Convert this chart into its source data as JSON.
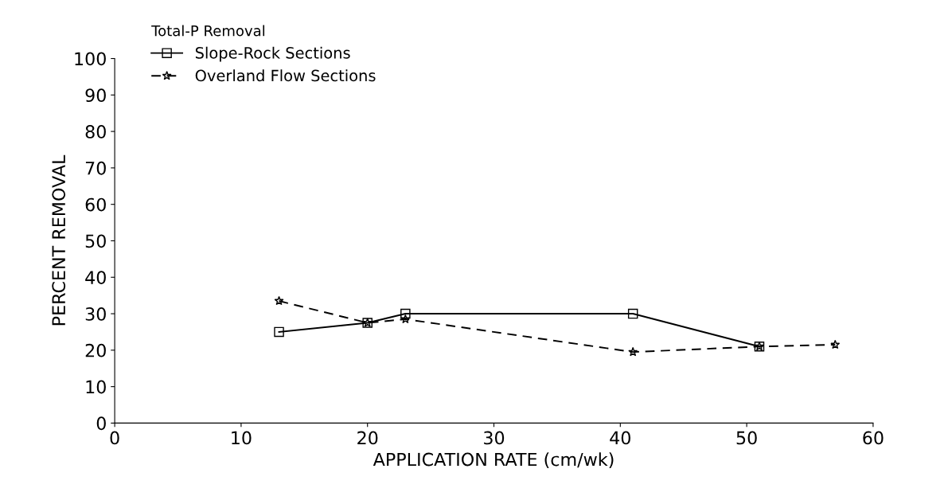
{
  "chart_data": {
    "type": "line",
    "xlabel": "APPLICATION RATE (cm/wk)",
    "ylabel": "PERCENT REMOVAL",
    "legend_title": "Total-P Removal",
    "series": [
      {
        "name": "Slope-Rock Sections",
        "color": "#000000",
        "marker": "square",
        "line_style": "solid",
        "x": [
          13,
          20,
          23,
          41,
          51
        ],
        "values": [
          25,
          27.5,
          30,
          30,
          21
        ]
      },
      {
        "name": "Overland Flow Sections",
        "color": "#000000",
        "marker": "star",
        "line_style": "dashed",
        "x": [
          13,
          20,
          23,
          41,
          51,
          57
        ],
        "values": [
          33.5,
          27.5,
          28.5,
          19.5,
          21,
          21.5
        ]
      }
    ],
    "xlim": [
      0,
      60
    ],
    "xticks": [
      0,
      10,
      20,
      30,
      40,
      50,
      60
    ],
    "ylim": [
      0,
      100
    ],
    "yticks": [
      0,
      10,
      20,
      30,
      40,
      50,
      60,
      70,
      80,
      90,
      100
    ],
    "grid": false,
    "legend": "top left"
  }
}
